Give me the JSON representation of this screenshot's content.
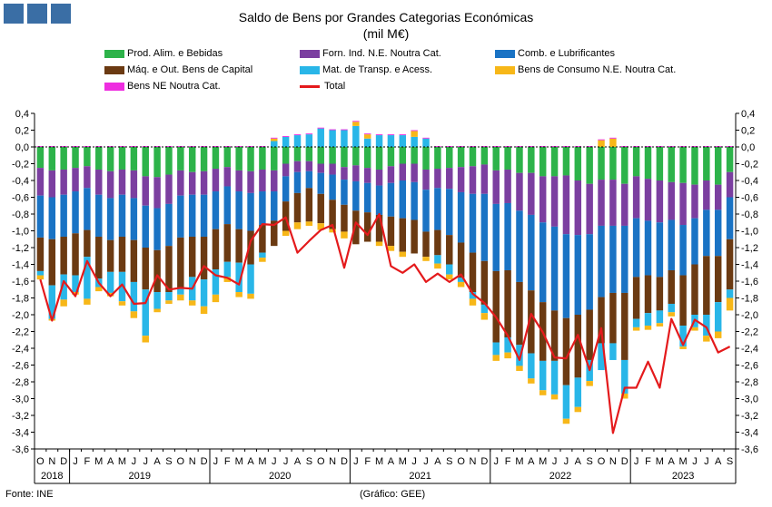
{
  "header": {
    "title_line1": "Saldo de Bens por Grandes Categorias Económicas",
    "title_line2": "(mil M€)"
  },
  "footer": {
    "source": "Fonte: INE",
    "credit": "(Gráfico: GEE)"
  },
  "chart_data": {
    "type": "bar",
    "stacked": true,
    "title": "Saldo de Bens por Grandes Categorias Económicas",
    "subtitle": "(mil M€)",
    "ylim": [
      -3.6,
      0.4
    ],
    "y_ticks": [
      "0,4",
      "0,2",
      "0,0",
      "-0,2",
      "-0,4",
      "-0,6",
      "-0,8",
      "-1,0",
      "-1,2",
      "-1,4",
      "-1,6",
      "-1,8",
      "-2,0",
      "-2,2",
      "-2,4",
      "-2,6",
      "-2,8",
      "-3,0",
      "-3,2",
      "-3,4",
      "-3,6"
    ],
    "y_tick_values": [
      0.4,
      0.2,
      0.0,
      -0.2,
      -0.4,
      -0.6,
      -0.8,
      -1.0,
      -1.2,
      -1.4,
      -1.6,
      -1.8,
      -2.0,
      -2.2,
      -2.4,
      -2.6,
      -2.8,
      -3.0,
      -3.2,
      -3.4,
      -3.6
    ],
    "month_labels": [
      "O",
      "N",
      "D",
      "J",
      "F",
      "M",
      "A",
      "M",
      "J",
      "J",
      "A",
      "S",
      "O",
      "N",
      "D",
      "J",
      "F",
      "M",
      "A",
      "M",
      "J",
      "J",
      "A",
      "S",
      "O",
      "N",
      "D",
      "J",
      "F",
      "M",
      "A",
      "M",
      "J",
      "J",
      "A",
      "S",
      "O",
      "N",
      "D",
      "J",
      "F",
      "M",
      "A",
      "M",
      "J",
      "J",
      "A",
      "S",
      "O",
      "N",
      "D",
      "J",
      "F",
      "M",
      "A",
      "M",
      "J",
      "J",
      "A",
      "S"
    ],
    "year_labels": [
      {
        "label": "2018",
        "start": 0,
        "end": 2
      },
      {
        "label": "2019",
        "start": 3,
        "end": 14
      },
      {
        "label": "2020",
        "start": 15,
        "end": 26
      },
      {
        "label": "2021",
        "start": 27,
        "end": 38
      },
      {
        "label": "2022",
        "start": 39,
        "end": 50
      },
      {
        "label": "2023",
        "start": 51,
        "end": 59
      }
    ],
    "series": [
      {
        "name": "Prod. Alim. e Bebidas",
        "color": "#2db34a",
        "values": [
          -0.25,
          -0.28,
          -0.27,
          -0.25,
          -0.23,
          -0.27,
          -0.29,
          -0.27,
          -0.28,
          -0.35,
          -0.36,
          -0.33,
          -0.28,
          -0.3,
          -0.29,
          -0.26,
          -0.24,
          -0.28,
          -0.29,
          -0.27,
          -0.28,
          -0.2,
          -0.17,
          -0.17,
          -0.2,
          -0.2,
          -0.24,
          -0.22,
          -0.25,
          -0.27,
          -0.23,
          -0.2,
          -0.2,
          -0.27,
          -0.26,
          -0.25,
          -0.24,
          -0.23,
          -0.21,
          -0.28,
          -0.27,
          -0.31,
          -0.31,
          -0.35,
          -0.35,
          -0.34,
          -0.4,
          -0.44,
          -0.39,
          -0.39,
          -0.44,
          -0.35,
          -0.38,
          -0.4,
          -0.42,
          -0.43,
          -0.45,
          -0.4,
          -0.45,
          -0.3
        ]
      },
      {
        "name": "Forn. Ind. N.E. Noutra Cat.",
        "color": "#7b3fa0",
        "values": [
          -0.33,
          -0.32,
          -0.3,
          -0.28,
          -0.26,
          -0.3,
          -0.32,
          -0.3,
          -0.33,
          -0.35,
          -0.37,
          -0.35,
          -0.3,
          -0.27,
          -0.28,
          -0.27,
          -0.23,
          -0.25,
          -0.26,
          -0.26,
          -0.25,
          -0.15,
          -0.13,
          -0.12,
          -0.11,
          -0.13,
          -0.15,
          -0.19,
          -0.18,
          -0.19,
          -0.2,
          -0.2,
          -0.22,
          -0.24,
          -0.23,
          -0.25,
          -0.3,
          -0.33,
          -0.35,
          -0.4,
          -0.4,
          -0.45,
          -0.5,
          -0.55,
          -0.6,
          -0.7,
          -0.65,
          -0.6,
          -0.55,
          -0.55,
          -0.5,
          -0.5,
          -0.5,
          -0.5,
          -0.45,
          -0.5,
          -0.4,
          -0.35,
          -0.3,
          -0.3
        ]
      },
      {
        "name": "Comb. e Lubrificantes",
        "color": "#1a73c4",
        "values": [
          -0.5,
          -0.5,
          -0.5,
          -0.5,
          -0.5,
          -0.5,
          -0.5,
          -0.5,
          -0.5,
          -0.5,
          -0.5,
          -0.5,
          -0.5,
          -0.5,
          -0.5,
          -0.45,
          -0.45,
          -0.45,
          -0.45,
          -0.4,
          -0.35,
          -0.3,
          -0.25,
          -0.2,
          -0.25,
          -0.3,
          -0.3,
          -0.35,
          -0.35,
          -0.35,
          -0.4,
          -0.45,
          -0.45,
          -0.5,
          -0.5,
          -0.55,
          -0.6,
          -0.7,
          -0.8,
          -0.8,
          -0.8,
          -0.85,
          -0.9,
          -0.95,
          -1.0,
          -1.0,
          -0.95,
          -0.9,
          -0.85,
          -0.8,
          -0.8,
          -0.7,
          -0.65,
          -0.65,
          -0.6,
          -0.6,
          -0.55,
          -0.55,
          -0.55,
          -0.5
        ]
      },
      {
        "name": "Máq. e Out. Bens de Capital",
        "color": "#6b3a12",
        "values": [
          -0.4,
          -0.55,
          -0.45,
          -0.5,
          -0.32,
          -0.5,
          -0.38,
          -0.42,
          -0.5,
          -0.5,
          -0.5,
          -0.55,
          -0.6,
          -0.48,
          -0.51,
          -0.48,
          -0.45,
          -0.4,
          -0.4,
          -0.33,
          -0.3,
          -0.35,
          -0.35,
          -0.4,
          -0.35,
          -0.35,
          -0.32,
          -0.4,
          -0.35,
          -0.32,
          -0.35,
          -0.4,
          -0.4,
          -0.3,
          -0.3,
          -0.35,
          -0.42,
          -0.47,
          -0.52,
          -0.85,
          -0.8,
          -0.75,
          -0.75,
          -0.7,
          -0.6,
          -0.8,
          -0.75,
          -0.6,
          -0.55,
          -0.6,
          -0.8,
          -0.5,
          -0.45,
          -0.4,
          -0.4,
          -0.6,
          -0.6,
          -0.7,
          -0.55,
          -0.6
        ]
      },
      {
        "name": "Mat. de Transp. e Acess.",
        "color": "#29b6e8",
        "values": [
          -0.05,
          -0.4,
          -0.3,
          -0.2,
          -0.5,
          -0.1,
          -0.25,
          -0.35,
          -0.35,
          -0.55,
          -0.2,
          -0.1,
          -0.08,
          -0.28,
          -0.32,
          -0.3,
          -0.18,
          -0.35,
          -0.35,
          -0.06,
          0.07,
          0.12,
          0.14,
          0.15,
          0.22,
          0.2,
          0.2,
          0.25,
          0.1,
          0.14,
          0.14,
          0.14,
          0.12,
          0.1,
          -0.1,
          -0.12,
          -0.05,
          -0.08,
          -0.1,
          -0.15,
          -0.18,
          -0.25,
          -0.3,
          -0.35,
          -0.4,
          -0.4,
          -0.35,
          -0.25,
          -0.32,
          -0.2,
          -0.4,
          -0.1,
          -0.15,
          -0.15,
          -0.1,
          -0.25,
          -0.15,
          -0.25,
          -0.35,
          -0.1
        ]
      },
      {
        "name": "Bens de Consumo N.E. Noutra Cat.",
        "color": "#f7b718",
        "values": [
          -0.05,
          -0.02,
          -0.08,
          -0.03,
          -0.07,
          -0.05,
          -0.04,
          -0.05,
          -0.08,
          -0.08,
          -0.04,
          -0.04,
          -0.07,
          -0.06,
          -0.09,
          -0.09,
          -0.06,
          -0.06,
          -0.06,
          -0.05,
          0.03,
          -0.06,
          -0.08,
          -0.05,
          -0.08,
          -0.04,
          -0.08,
          0.05,
          0.05,
          -0.05,
          -0.06,
          -0.06,
          0.07,
          -0.05,
          -0.06,
          -0.06,
          -0.06,
          -0.08,
          -0.08,
          -0.07,
          -0.07,
          -0.06,
          -0.06,
          -0.06,
          -0.06,
          -0.06,
          -0.06,
          -0.06,
          0.08,
          0.1,
          -0.06,
          -0.04,
          -0.05,
          -0.04,
          -0.05,
          -0.03,
          -0.04,
          -0.07,
          -0.08,
          -0.15
        ]
      },
      {
        "name": "Bens NE Noutra Cat.",
        "color": "#ee2de0",
        "values": [
          0.01,
          0.01,
          0.01,
          0.01,
          0.01,
          0.01,
          0.01,
          0.01,
          0.01,
          0.01,
          0.01,
          0.01,
          0.01,
          0.01,
          0.01,
          0.01,
          0.01,
          0.01,
          0.01,
          0.01,
          0.01,
          0.01,
          0.01,
          0.01,
          0.01,
          0.01,
          0.01,
          0.01,
          0.01,
          0.01,
          0.01,
          0.01,
          0.01,
          0.01,
          0.01,
          0.01,
          0.01,
          0.01,
          0.01,
          0.01,
          0.01,
          0.01,
          0.01,
          0.01,
          0.01,
          0.01,
          0.01,
          0.01,
          0.01,
          0.01,
          0.01,
          0.01,
          0.01,
          0.01,
          0.01,
          0.01,
          0.01,
          0.01,
          0.01,
          0.01
        ]
      }
    ],
    "total": {
      "name": "Total",
      "color": "#e41a1c",
      "values": [
        -1.58,
        -2.07,
        -1.6,
        -1.78,
        -1.36,
        -1.62,
        -1.78,
        -1.64,
        -1.87,
        -1.86,
        -1.53,
        -1.7,
        -1.68,
        -1.69,
        -1.42,
        -1.53,
        -1.56,
        -1.64,
        -1.12,
        -0.92,
        -0.93,
        -0.84,
        -1.26,
        -1.12,
        -0.99,
        -0.93,
        -1.44,
        -0.9,
        -1.05,
        -0.8,
        -1.42,
        -1.5,
        -1.4,
        -1.61,
        -1.51,
        -1.61,
        -1.52,
        -1.75,
        -1.86,
        -2.03,
        -2.25,
        -2.54,
        -1.99,
        -2.21,
        -2.51,
        -2.52,
        -2.24,
        -2.66,
        -2.16,
        -3.41,
        -2.87,
        -2.87,
        -2.56,
        -2.87,
        -2.05,
        -2.36,
        -2.06,
        -2.15,
        -2.45,
        -2.38
      ]
    },
    "y_axis_side": "both",
    "grid": false
  }
}
